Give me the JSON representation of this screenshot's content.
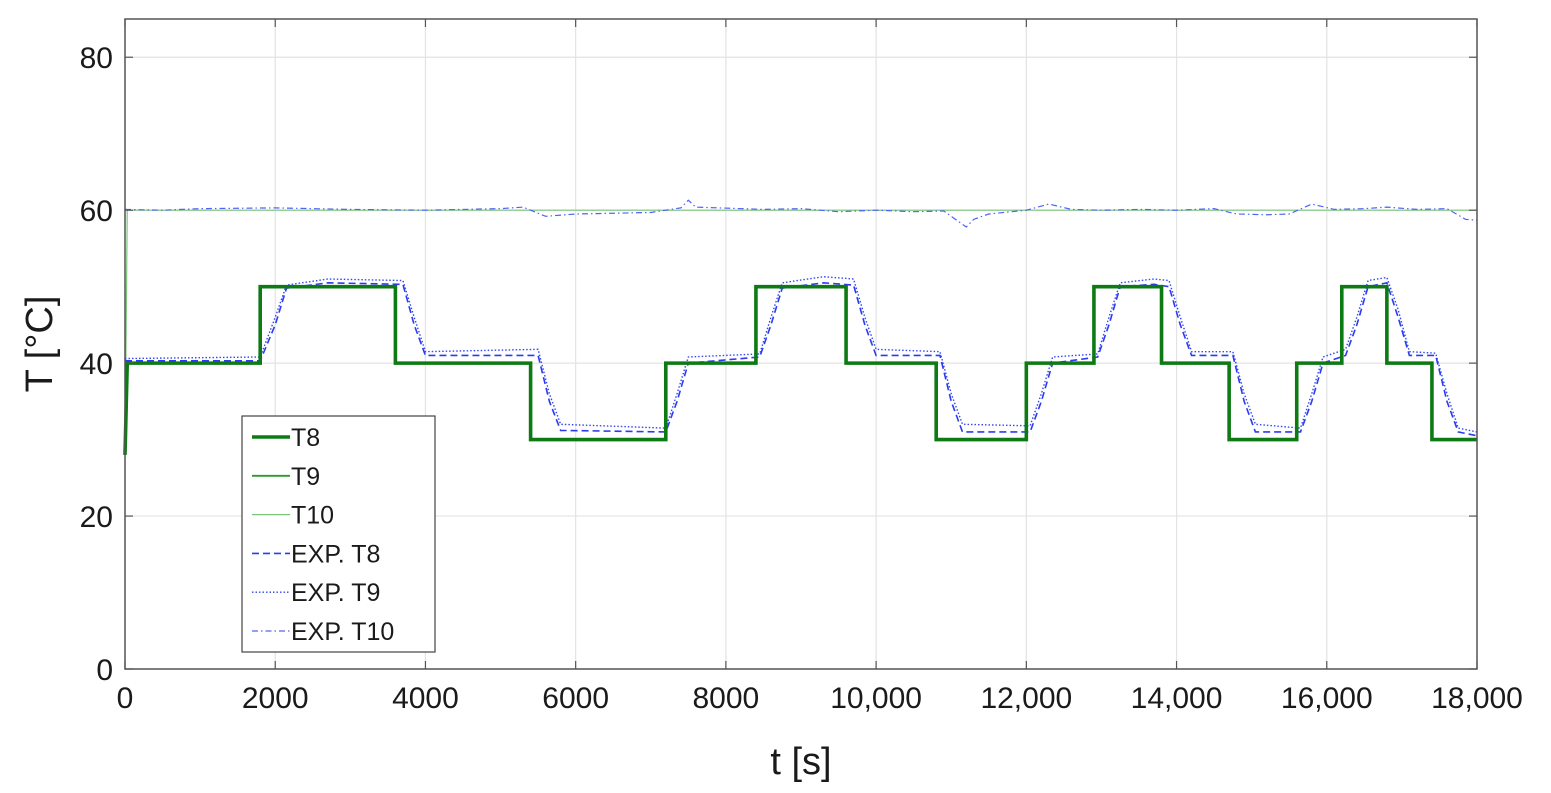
{
  "chart_data": {
    "type": "line",
    "title": "",
    "xlabel": "t [s]",
    "ylabel": "T [°C]",
    "xlim": [
      0,
      18000
    ],
    "ylim": [
      0,
      85
    ],
    "grid": true,
    "legend_position": "lower-left",
    "x_ticks": [
      0,
      2000,
      4000,
      6000,
      8000,
      10000,
      12000,
      14000,
      16000,
      18000
    ],
    "x_tick_labels": [
      "0",
      "2000",
      "4000",
      "6000",
      "8000",
      "10,000",
      "12,000",
      "14,000",
      "16,000",
      "18,000"
    ],
    "y_ticks": [
      0,
      20,
      40,
      60,
      80
    ],
    "y_tick_labels": [
      "0",
      "20",
      "40",
      "60",
      "80"
    ],
    "series": [
      {
        "name": "T8",
        "color": "#0d7a14",
        "style": "solid-thick",
        "points": [
          [
            0,
            28
          ],
          [
            30,
            40
          ],
          [
            1800,
            40
          ],
          [
            1800,
            50
          ],
          [
            3600,
            50
          ],
          [
            3600,
            40
          ],
          [
            5400,
            40
          ],
          [
            5400,
            30
          ],
          [
            7200,
            30
          ],
          [
            7200,
            40
          ],
          [
            8400,
            40
          ],
          [
            8400,
            50
          ],
          [
            9600,
            50
          ],
          [
            9600,
            40
          ],
          [
            10800,
            40
          ],
          [
            10800,
            30
          ],
          [
            12000,
            30
          ],
          [
            12000,
            40
          ],
          [
            12900,
            40
          ],
          [
            12900,
            50
          ],
          [
            13800,
            50
          ],
          [
            13800,
            40
          ],
          [
            14700,
            40
          ],
          [
            14700,
            30
          ],
          [
            15600,
            30
          ],
          [
            15600,
            40
          ],
          [
            16200,
            40
          ],
          [
            16200,
            50
          ],
          [
            16800,
            50
          ],
          [
            16800,
            40
          ],
          [
            17400,
            40
          ],
          [
            17400,
            30
          ],
          [
            18000,
            30
          ]
        ]
      },
      {
        "name": "T9",
        "color": "#2a9a2a",
        "style": "solid-medium",
        "points": [
          [
            0,
            40
          ],
          [
            1800,
            40
          ],
          [
            1800,
            50
          ],
          [
            3600,
            50
          ],
          [
            3600,
            40
          ],
          [
            5400,
            40
          ],
          [
            5400,
            30
          ],
          [
            7200,
            30
          ],
          [
            7200,
            40
          ],
          [
            8400,
            40
          ],
          [
            8400,
            50
          ],
          [
            9600,
            50
          ],
          [
            9600,
            40
          ],
          [
            10800,
            40
          ],
          [
            10800,
            30
          ],
          [
            12000,
            30
          ],
          [
            12000,
            40
          ],
          [
            12900,
            40
          ],
          [
            12900,
            50
          ],
          [
            13800,
            50
          ],
          [
            13800,
            40
          ],
          [
            14700,
            40
          ],
          [
            14700,
            30
          ],
          [
            15600,
            30
          ],
          [
            15600,
            40
          ],
          [
            16200,
            40
          ],
          [
            16200,
            50
          ],
          [
            16800,
            50
          ],
          [
            16800,
            40
          ],
          [
            17400,
            40
          ],
          [
            17400,
            30
          ],
          [
            18000,
            30
          ]
        ]
      },
      {
        "name": "T10",
        "color": "#7cc67c",
        "style": "solid-thin",
        "points": [
          [
            0,
            28
          ],
          [
            30,
            60
          ],
          [
            18000,
            60
          ]
        ]
      },
      {
        "name": "EXP. T8",
        "color": "#2b3bf0",
        "style": "dashed",
        "points": [
          [
            0,
            40.3
          ],
          [
            1800,
            40.3
          ],
          [
            2000,
            45
          ],
          [
            2150,
            49.8
          ],
          [
            2700,
            50.5
          ],
          [
            3700,
            50.3
          ],
          [
            3850,
            45
          ],
          [
            4000,
            41
          ],
          [
            5500,
            41
          ],
          [
            5650,
            35
          ],
          [
            5800,
            31.2
          ],
          [
            7200,
            31
          ],
          [
            7350,
            35
          ],
          [
            7500,
            40
          ],
          [
            8450,
            40.8
          ],
          [
            8600,
            45
          ],
          [
            8750,
            49.8
          ],
          [
            9300,
            50.5
          ],
          [
            9700,
            50.2
          ],
          [
            9850,
            45
          ],
          [
            10000,
            41
          ],
          [
            10850,
            41
          ],
          [
            11000,
            35
          ],
          [
            11150,
            31
          ],
          [
            12050,
            31
          ],
          [
            12200,
            35
          ],
          [
            12350,
            40
          ],
          [
            12950,
            40.8
          ],
          [
            13100,
            45
          ],
          [
            13250,
            50
          ],
          [
            13700,
            50.3
          ],
          [
            13900,
            50
          ],
          [
            14050,
            45
          ],
          [
            14200,
            41
          ],
          [
            14750,
            41
          ],
          [
            14900,
            35
          ],
          [
            15050,
            31
          ],
          [
            15650,
            31
          ],
          [
            15800,
            35
          ],
          [
            15950,
            40
          ],
          [
            16250,
            41
          ],
          [
            16400,
            45
          ],
          [
            16550,
            50
          ],
          [
            16800,
            50.5
          ],
          [
            16950,
            46
          ],
          [
            17100,
            41
          ],
          [
            17450,
            41
          ],
          [
            17600,
            35
          ],
          [
            17750,
            31
          ],
          [
            18000,
            30.5
          ]
        ]
      },
      {
        "name": "EXP. T9",
        "color": "#3348f5",
        "style": "dotted",
        "points": [
          [
            0,
            40.6
          ],
          [
            1800,
            40.8
          ],
          [
            2000,
            46
          ],
          [
            2150,
            50.2
          ],
          [
            2700,
            51
          ],
          [
            3700,
            50.8
          ],
          [
            3850,
            46
          ],
          [
            4000,
            41.5
          ],
          [
            5500,
            41.8
          ],
          [
            5650,
            36
          ],
          [
            5800,
            32
          ],
          [
            7200,
            31.5
          ],
          [
            7350,
            36
          ],
          [
            7500,
            40.8
          ],
          [
            8450,
            41.2
          ],
          [
            8600,
            46
          ],
          [
            8750,
            50.5
          ],
          [
            9300,
            51.3
          ],
          [
            9700,
            51
          ],
          [
            9850,
            46
          ],
          [
            10000,
            41.8
          ],
          [
            10850,
            41.5
          ],
          [
            11000,
            36
          ],
          [
            11150,
            32
          ],
          [
            12050,
            31.8
          ],
          [
            12200,
            36
          ],
          [
            12350,
            40.8
          ],
          [
            12950,
            41.2
          ],
          [
            13100,
            46
          ],
          [
            13250,
            50.5
          ],
          [
            13700,
            51
          ],
          [
            13900,
            50.8
          ],
          [
            14050,
            46
          ],
          [
            14200,
            41.5
          ],
          [
            14750,
            41.5
          ],
          [
            14900,
            36
          ],
          [
            15050,
            32
          ],
          [
            15650,
            31.5
          ],
          [
            15800,
            36
          ],
          [
            15950,
            40.8
          ],
          [
            16250,
            41.8
          ],
          [
            16400,
            46
          ],
          [
            16550,
            50.8
          ],
          [
            16800,
            51.2
          ],
          [
            16950,
            47
          ],
          [
            17100,
            41.5
          ],
          [
            17450,
            41.3
          ],
          [
            17600,
            36
          ],
          [
            17750,
            31.5
          ],
          [
            18000,
            31
          ]
        ]
      },
      {
        "name": "EXP. T10",
        "color": "#4f63f7",
        "style": "dashdot",
        "points": [
          [
            0,
            60.1
          ],
          [
            500,
            60
          ],
          [
            1000,
            60.2
          ],
          [
            2000,
            60.3
          ],
          [
            3000,
            60.1
          ],
          [
            4000,
            60
          ],
          [
            5000,
            60.2
          ],
          [
            5300,
            60.4
          ],
          [
            5600,
            59.2
          ],
          [
            6000,
            59.5
          ],
          [
            6500,
            59.6
          ],
          [
            7000,
            59.7
          ],
          [
            7400,
            60.3
          ],
          [
            7500,
            61.3
          ],
          [
            7600,
            60.4
          ],
          [
            8500,
            60.1
          ],
          [
            9000,
            60.2
          ],
          [
            9500,
            59.8
          ],
          [
            10000,
            60
          ],
          [
            10500,
            59.8
          ],
          [
            10900,
            59.9
          ],
          [
            11100,
            58.5
          ],
          [
            11200,
            57.8
          ],
          [
            11300,
            58.8
          ],
          [
            11500,
            59.5
          ],
          [
            12000,
            60
          ],
          [
            12300,
            60.8
          ],
          [
            12600,
            60.1
          ],
          [
            13000,
            60
          ],
          [
            13500,
            60.1
          ],
          [
            14000,
            60
          ],
          [
            14500,
            60.2
          ],
          [
            14800,
            59.5
          ],
          [
            15200,
            59.4
          ],
          [
            15500,
            59.5
          ],
          [
            15800,
            60.8
          ],
          [
            16100,
            60.1
          ],
          [
            16500,
            60.2
          ],
          [
            16800,
            60.4
          ],
          [
            17200,
            60.1
          ],
          [
            17600,
            60.2
          ],
          [
            17850,
            58.8
          ],
          [
            18000,
            58.7
          ]
        ]
      }
    ]
  }
}
